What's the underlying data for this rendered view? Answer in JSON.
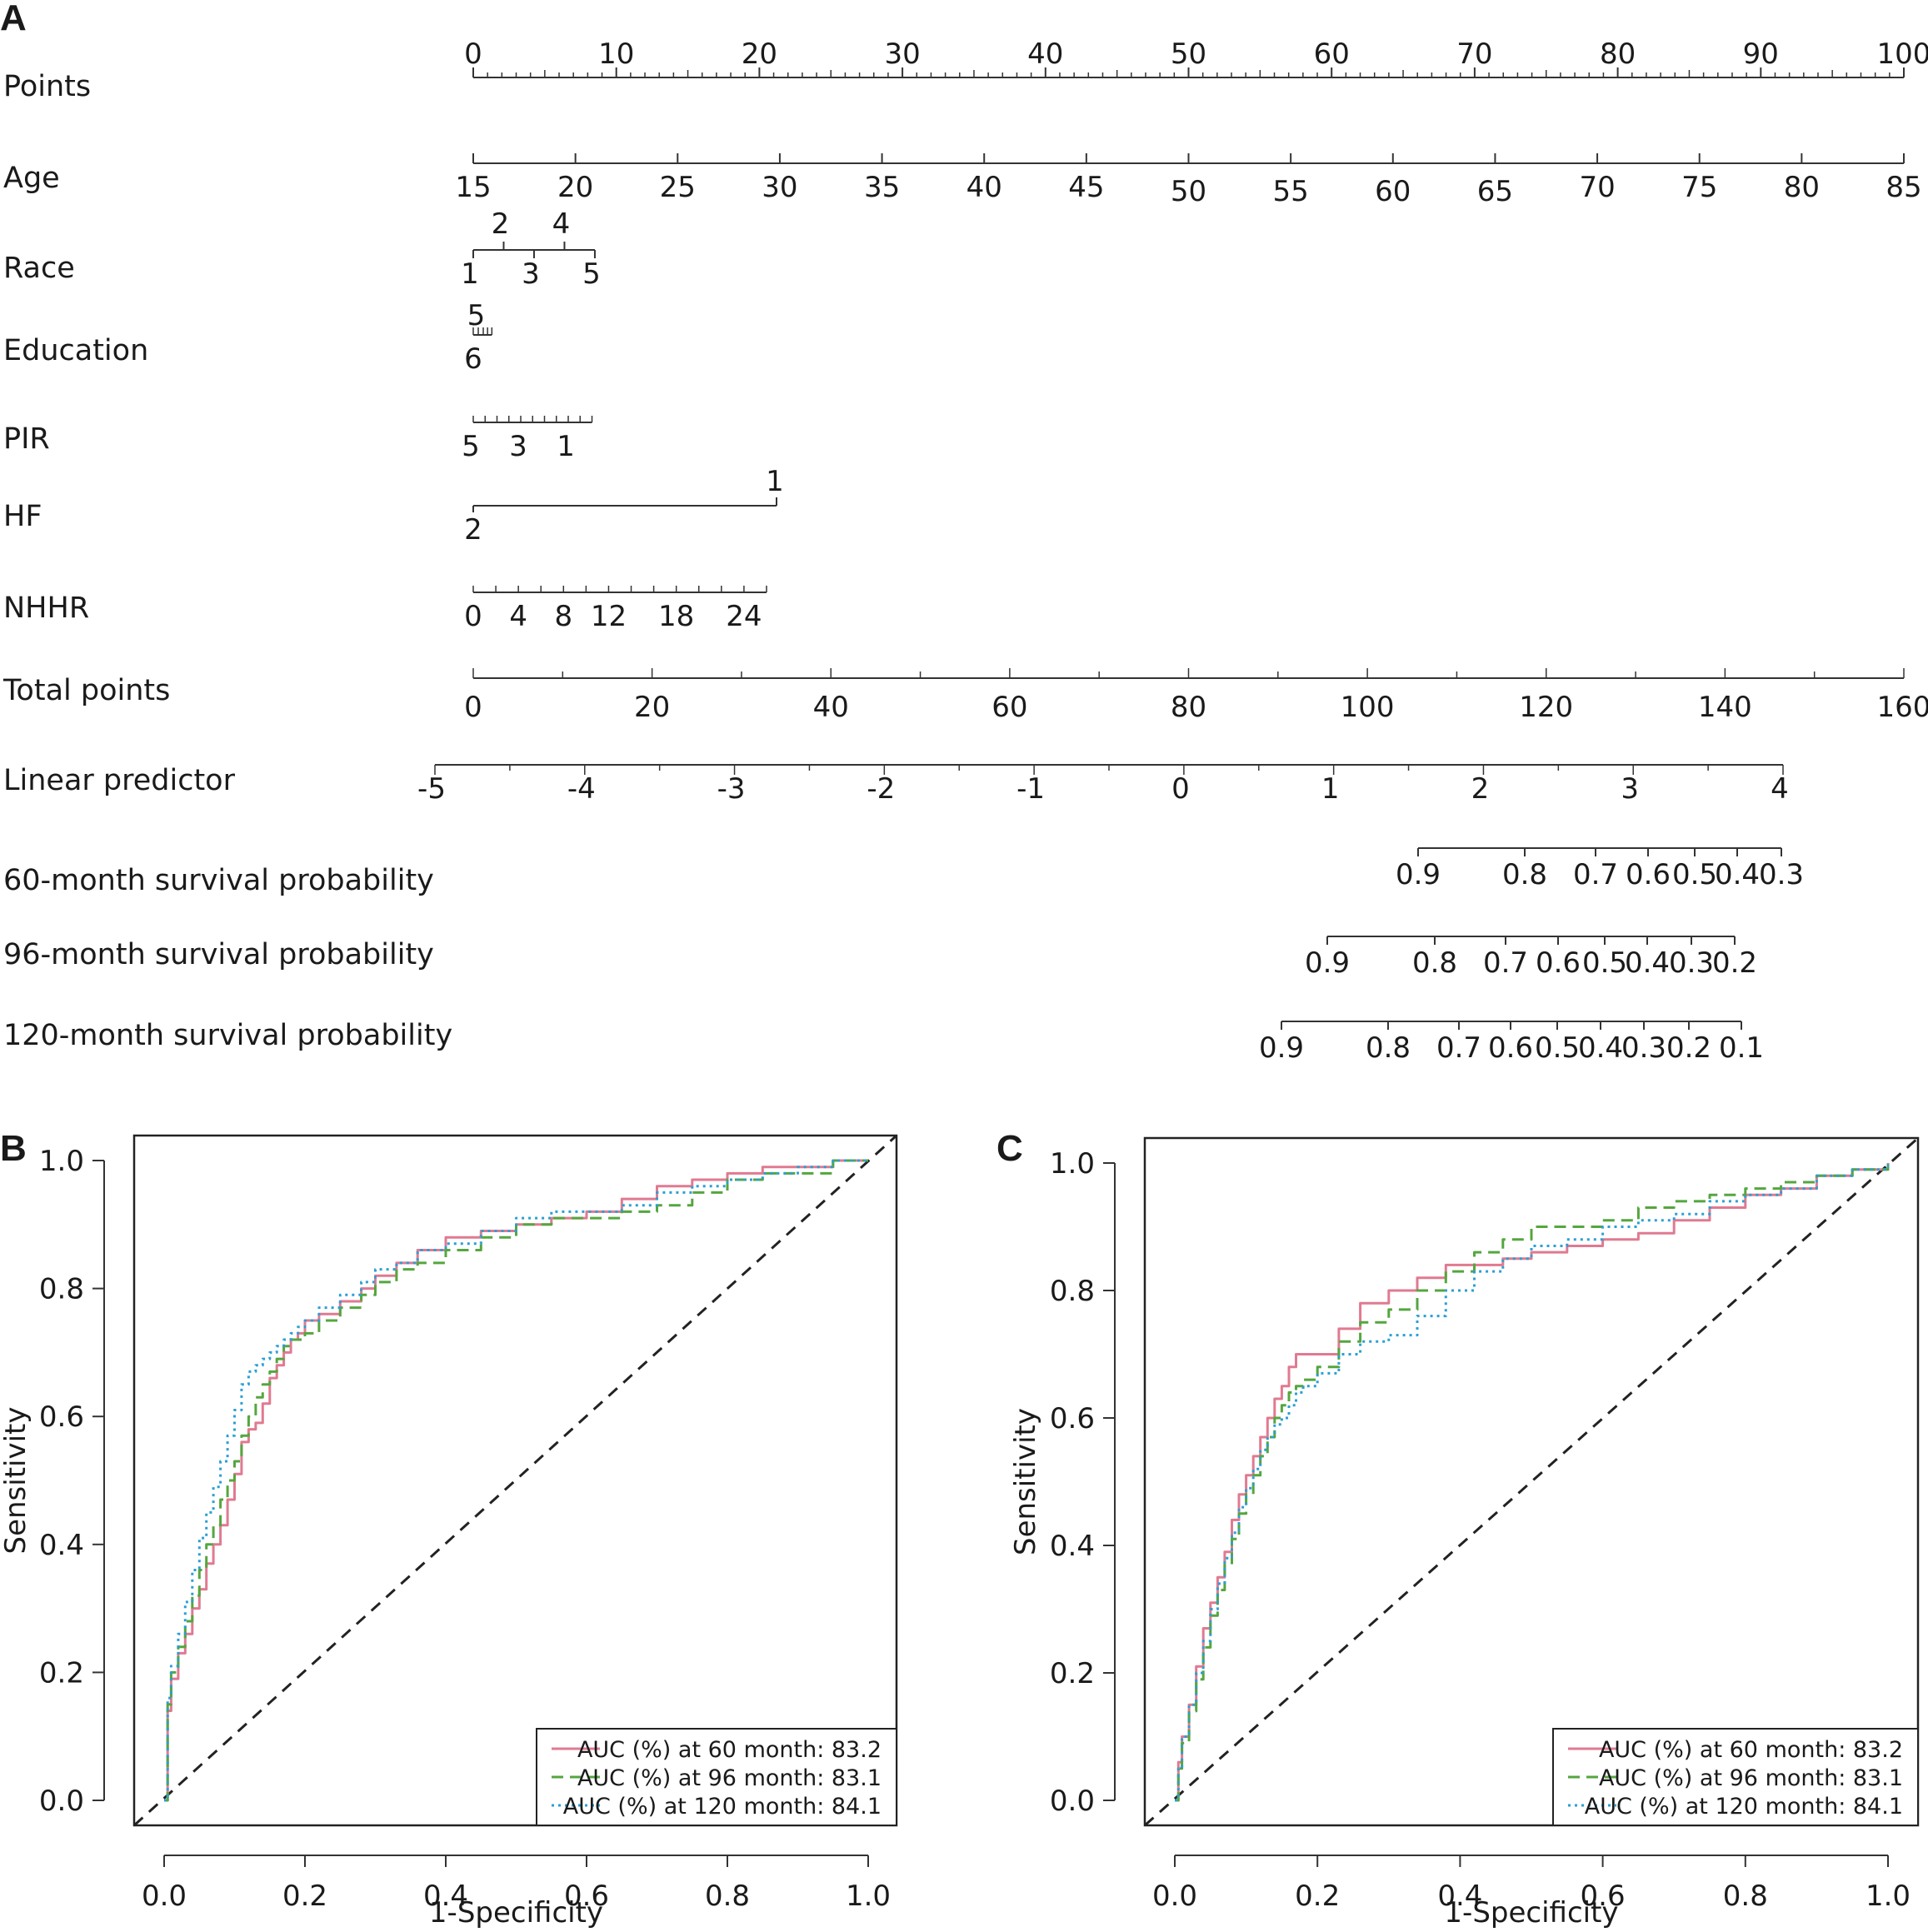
{
  "chart_data": [
    {
      "type": "nomogram",
      "panel_label": "A",
      "rows": [
        {
          "name": "Points",
          "ticks_above": [
            "0",
            "10",
            "20",
            "30",
            "40",
            "50",
            "60",
            "70",
            "80",
            "90",
            "100"
          ],
          "ticks_below": [],
          "range": [
            0,
            100
          ],
          "minor": 5
        },
        {
          "name": "Age",
          "ticks_above": [],
          "ticks_below": [
            "15",
            "20",
            "25",
            "30",
            "35",
            "40",
            "45",
            "50",
            "55",
            "60",
            "65",
            "70",
            "75",
            "80",
            "85"
          ],
          "range": [
            15,
            85
          ]
        },
        {
          "name": "Race",
          "ticks_above": [
            "2",
            "4"
          ],
          "ticks_below": [
            "1",
            "3",
            "5"
          ],
          "range": [
            1,
            5
          ]
        },
        {
          "name": "Education",
          "ticks_above": [
            "5"
          ],
          "ticks_below": [
            "6"
          ],
          "range": [
            6,
            1
          ]
        },
        {
          "name": "PIR",
          "ticks_above": [],
          "ticks_below": [
            "5",
            "3",
            "1"
          ],
          "range": [
            5,
            0
          ]
        },
        {
          "name": "HF",
          "ticks_above": [
            "1"
          ],
          "ticks_below": [
            "2"
          ],
          "range": [
            2,
            1
          ]
        },
        {
          "name": "NHHR",
          "ticks_above": [],
          "ticks_below": [
            "0",
            "4",
            "8",
            "12",
            "18",
            "24"
          ],
          "range": [
            0,
            26
          ]
        },
        {
          "name": "Total points",
          "ticks_above": [],
          "ticks_below": [
            "0",
            "20",
            "40",
            "60",
            "80",
            "100",
            "120",
            "140",
            "160"
          ],
          "range": [
            0,
            160
          ]
        },
        {
          "name": "Linear predictor",
          "ticks_above": [],
          "ticks_below": [
            "-5",
            "-4",
            "-3",
            "-2",
            "-1",
            "0",
            "1",
            "2",
            "3",
            "4"
          ],
          "range": [
            -5,
            4
          ]
        },
        {
          "name": "60-month survival probability",
          "ticks_above": [],
          "ticks_below": [
            "0.9",
            "0.8",
            "0.7",
            "0.6",
            "0.5",
            "0.4",
            "0.3"
          ]
        },
        {
          "name": "96-month survival probability",
          "ticks_above": [],
          "ticks_below": [
            "0.9",
            "0.8",
            "0.7",
            "0.6",
            "0.5",
            "0.4",
            "0.3",
            "0.2"
          ]
        },
        {
          "name": "120-month survival probability",
          "ticks_above": [],
          "ticks_below": [
            "0.9",
            "0.8",
            "0.7",
            "0.6",
            "0.5",
            "0.4",
            "0.3",
            "0.2",
            "0.1"
          ]
        }
      ]
    },
    {
      "type": "line",
      "panel_label": "B",
      "xlabel": "1-Specificity",
      "ylabel": "Sensitivity",
      "xlim": [
        0,
        1
      ],
      "ylim": [
        0,
        1
      ],
      "xticks": [
        "0.0",
        "0.2",
        "0.4",
        "0.6",
        "0.8",
        "1.0"
      ],
      "yticks": [
        "0.0",
        "0.2",
        "0.4",
        "0.6",
        "0.8",
        "1.0"
      ],
      "legend_position": "bottom-right",
      "series": [
        {
          "name": "AUC (%) at 60 month: 83.2",
          "color": "#e07a91",
          "dash": "solid",
          "x": [
            0,
            0.005,
            0.01,
            0.02,
            0.03,
            0.04,
            0.05,
            0.06,
            0.07,
            0.08,
            0.09,
            0.1,
            0.11,
            0.12,
            0.13,
            0.14,
            0.15,
            0.16,
            0.17,
            0.18,
            0.19,
            0.2,
            0.22,
            0.25,
            0.28,
            0.3,
            0.33,
            0.36,
            0.4,
            0.45,
            0.5,
            0.55,
            0.6,
            0.65,
            0.7,
            0.75,
            0.8,
            0.85,
            0.9,
            0.95,
            1
          ],
          "y": [
            0,
            0.14,
            0.19,
            0.23,
            0.26,
            0.3,
            0.33,
            0.37,
            0.4,
            0.43,
            0.47,
            0.51,
            0.56,
            0.58,
            0.59,
            0.62,
            0.66,
            0.68,
            0.7,
            0.72,
            0.73,
            0.75,
            0.76,
            0.78,
            0.8,
            0.82,
            0.84,
            0.86,
            0.88,
            0.89,
            0.9,
            0.91,
            0.92,
            0.94,
            0.96,
            0.97,
            0.98,
            0.99,
            0.99,
            1,
            1
          ]
        },
        {
          "name": "AUC (%) at 96 month: 83.1",
          "color": "#55a63f",
          "dash": "dashed",
          "x": [
            0,
            0.005,
            0.01,
            0.02,
            0.03,
            0.04,
            0.05,
            0.06,
            0.07,
            0.08,
            0.09,
            0.1,
            0.11,
            0.12,
            0.13,
            0.14,
            0.15,
            0.16,
            0.17,
            0.18,
            0.19,
            0.2,
            0.22,
            0.25,
            0.28,
            0.3,
            0.33,
            0.36,
            0.4,
            0.45,
            0.5,
            0.55,
            0.6,
            0.65,
            0.7,
            0.75,
            0.8,
            0.85,
            0.9,
            0.95,
            1
          ],
          "y": [
            0,
            0.15,
            0.2,
            0.24,
            0.28,
            0.32,
            0.36,
            0.4,
            0.43,
            0.47,
            0.5,
            0.53,
            0.57,
            0.6,
            0.63,
            0.65,
            0.67,
            0.69,
            0.71,
            0.72,
            0.72,
            0.73,
            0.75,
            0.77,
            0.79,
            0.81,
            0.83,
            0.84,
            0.86,
            0.88,
            0.9,
            0.91,
            0.91,
            0.92,
            0.93,
            0.95,
            0.97,
            0.98,
            0.98,
            1,
            1
          ]
        },
        {
          "name": "AUC (%) at 120 month: 84.1",
          "color": "#2b9fd4",
          "dash": "dotted",
          "x": [
            0,
            0.005,
            0.01,
            0.02,
            0.03,
            0.04,
            0.05,
            0.06,
            0.07,
            0.08,
            0.09,
            0.1,
            0.11,
            0.12,
            0.13,
            0.14,
            0.15,
            0.16,
            0.17,
            0.18,
            0.19,
            0.2,
            0.22,
            0.25,
            0.28,
            0.3,
            0.33,
            0.36,
            0.4,
            0.45,
            0.5,
            0.55,
            0.6,
            0.65,
            0.7,
            0.75,
            0.8,
            0.85,
            0.9,
            0.95,
            1
          ],
          "y": [
            0,
            0.16,
            0.21,
            0.26,
            0.31,
            0.36,
            0.41,
            0.45,
            0.49,
            0.53,
            0.57,
            0.61,
            0.65,
            0.67,
            0.68,
            0.69,
            0.7,
            0.71,
            0.72,
            0.73,
            0.74,
            0.75,
            0.77,
            0.79,
            0.81,
            0.83,
            0.84,
            0.86,
            0.87,
            0.89,
            0.91,
            0.92,
            0.92,
            0.93,
            0.95,
            0.96,
            0.97,
            0.98,
            0.99,
            1,
            1
          ]
        }
      ]
    },
    {
      "type": "line",
      "panel_label": "C",
      "xlabel": "1-Specificity",
      "ylabel": "Sensitivity",
      "xlim": [
        0,
        1
      ],
      "ylim": [
        0,
        1
      ],
      "xticks": [
        "0.0",
        "0.2",
        "0.4",
        "0.6",
        "0.8",
        "1.0"
      ],
      "yticks": [
        "0.0",
        "0.2",
        "0.4",
        "0.6",
        "0.8",
        "1.0"
      ],
      "legend_position": "bottom-right",
      "series": [
        {
          "name": "AUC (%) at 60 month: 83.2",
          "color": "#e07a91",
          "dash": "solid",
          "x": [
            0,
            0.005,
            0.01,
            0.02,
            0.03,
            0.04,
            0.05,
            0.06,
            0.07,
            0.08,
            0.09,
            0.1,
            0.11,
            0.12,
            0.13,
            0.14,
            0.15,
            0.16,
            0.17,
            0.18,
            0.2,
            0.23,
            0.26,
            0.3,
            0.34,
            0.38,
            0.42,
            0.46,
            0.5,
            0.55,
            0.6,
            0.65,
            0.7,
            0.75,
            0.8,
            0.85,
            0.9,
            0.95,
            1
          ],
          "y": [
            0,
            0.06,
            0.1,
            0.15,
            0.21,
            0.27,
            0.31,
            0.35,
            0.39,
            0.44,
            0.48,
            0.51,
            0.54,
            0.57,
            0.6,
            0.63,
            0.65,
            0.68,
            0.7,
            0.7,
            0.7,
            0.74,
            0.78,
            0.8,
            0.82,
            0.84,
            0.84,
            0.85,
            0.86,
            0.87,
            0.88,
            0.89,
            0.91,
            0.93,
            0.95,
            0.96,
            0.98,
            0.99,
            1
          ]
        },
        {
          "name": "AUC (%) at 96 month: 83.1",
          "color": "#55a63f",
          "dash": "dashed",
          "x": [
            0,
            0.005,
            0.01,
            0.02,
            0.03,
            0.04,
            0.05,
            0.06,
            0.07,
            0.08,
            0.09,
            0.1,
            0.11,
            0.12,
            0.13,
            0.14,
            0.15,
            0.16,
            0.17,
            0.18,
            0.2,
            0.23,
            0.26,
            0.3,
            0.34,
            0.38,
            0.42,
            0.46,
            0.5,
            0.55,
            0.6,
            0.65,
            0.7,
            0.75,
            0.8,
            0.85,
            0.9,
            0.95,
            1
          ],
          "y": [
            0,
            0.05,
            0.09,
            0.14,
            0.19,
            0.24,
            0.29,
            0.33,
            0.37,
            0.41,
            0.45,
            0.48,
            0.51,
            0.54,
            0.57,
            0.6,
            0.62,
            0.64,
            0.65,
            0.66,
            0.68,
            0.72,
            0.75,
            0.77,
            0.8,
            0.83,
            0.86,
            0.88,
            0.9,
            0.9,
            0.91,
            0.93,
            0.94,
            0.95,
            0.96,
            0.97,
            0.98,
            0.99,
            1
          ]
        },
        {
          "name": "AUC (%) at 120 month: 84.1",
          "color": "#2b9fd4",
          "dash": "dotted",
          "x": [
            0,
            0.005,
            0.01,
            0.02,
            0.03,
            0.04,
            0.05,
            0.06,
            0.07,
            0.08,
            0.09,
            0.1,
            0.11,
            0.12,
            0.13,
            0.14,
            0.15,
            0.16,
            0.17,
            0.18,
            0.2,
            0.23,
            0.26,
            0.3,
            0.34,
            0.38,
            0.42,
            0.46,
            0.5,
            0.55,
            0.6,
            0.65,
            0.7,
            0.75,
            0.8,
            0.85,
            0.9,
            0.95,
            1
          ],
          "y": [
            0,
            0.05,
            0.1,
            0.15,
            0.2,
            0.25,
            0.3,
            0.34,
            0.38,
            0.42,
            0.46,
            0.49,
            0.52,
            0.55,
            0.57,
            0.59,
            0.6,
            0.62,
            0.64,
            0.65,
            0.67,
            0.7,
            0.72,
            0.73,
            0.76,
            0.8,
            0.83,
            0.85,
            0.87,
            0.88,
            0.9,
            0.91,
            0.92,
            0.94,
            0.95,
            0.96,
            0.98,
            0.99,
            1
          ]
        }
      ]
    }
  ]
}
